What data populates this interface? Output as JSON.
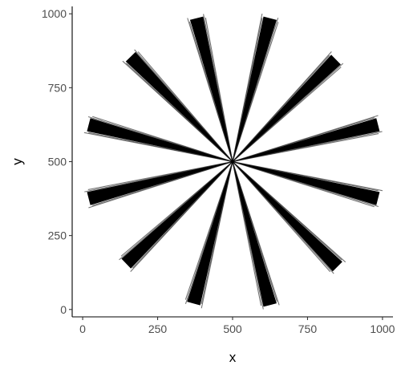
{
  "chart_data": {
    "type": "line",
    "title": "",
    "xlabel": "x",
    "ylabel": "y",
    "xlim": [
      -35,
      1035
    ],
    "ylim": [
      -25,
      1025
    ],
    "xticks": [
      0,
      250,
      500,
      750,
      1000
    ],
    "yticks": [
      0,
      250,
      500,
      750,
      1000
    ],
    "xtick_labels": [
      "0",
      "250",
      "500",
      "750",
      "1000"
    ],
    "ytick_labels": [
      "0",
      "250",
      "500",
      "750",
      "1000"
    ],
    "grid": false,
    "legend": "none",
    "line_color": "#000000",
    "center": {
      "x": 500,
      "y": 500
    },
    "spokes": [
      {
        "x": [
          500,
          625
        ],
        "y": [
          500,
          985
        ]
      },
      {
        "x": [
          500,
          845
        ],
        "y": [
          500,
          845
        ]
      },
      {
        "x": [
          500,
          985
        ],
        "y": [
          500,
          625
        ]
      },
      {
        "x": [
          500,
          985
        ],
        "y": [
          500,
          375
        ]
      },
      {
        "x": [
          500,
          850
        ],
        "y": [
          500,
          145
        ]
      },
      {
        "x": [
          500,
          625
        ],
        "y": [
          500,
          15
        ]
      },
      {
        "x": [
          500,
          370
        ],
        "y": [
          500,
          20
        ]
      },
      {
        "x": [
          500,
          145
        ],
        "y": [
          500,
          155
        ]
      },
      {
        "x": [
          500,
          20
        ],
        "y": [
          500,
          375
        ]
      },
      {
        "x": [
          500,
          20
        ],
        "y": [
          500,
          625
        ]
      },
      {
        "x": [
          500,
          160
        ],
        "y": [
          500,
          855
        ]
      },
      {
        "x": [
          500,
          380
        ],
        "y": [
          500,
          985
        ]
      }
    ]
  }
}
